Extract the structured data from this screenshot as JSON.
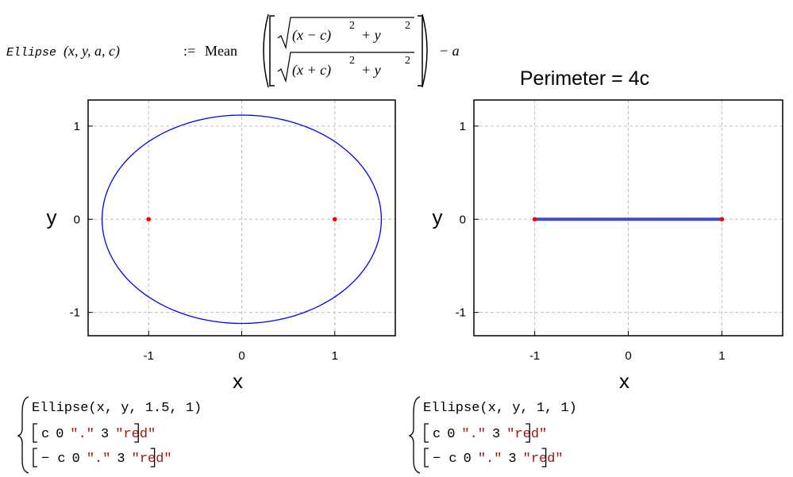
{
  "formula": {
    "name": "Ellipse",
    "args": "(x, y, a, c)",
    "assign": ":=",
    "func": "Mean",
    "top_inner": "(x − c)",
    "top_exp": "2",
    "top_tail": "+ y",
    "top_tail_exp": "2",
    "bottom_inner": "(x + c)",
    "bottom_exp": "2",
    "bottom_tail": "+ y",
    "bottom_tail_exp": "2",
    "tail": "− a"
  },
  "chart_data": [
    {
      "type": "implicit",
      "xlabel": "x",
      "ylabel": "y",
      "xlim": [
        -1.65,
        1.65
      ],
      "ylim": [
        -1.25,
        1.28
      ],
      "xticks": [
        -1,
        0,
        1
      ],
      "yticks": [
        -1,
        0,
        1
      ],
      "grid": true,
      "curve": {
        "a": 1.5,
        "c": 1,
        "color": "#0000ff",
        "width": 1.3
      },
      "points": {
        "x": [
          -1,
          1
        ],
        "y": [
          0,
          0
        ],
        "color": "#ff0000"
      }
    },
    {
      "type": "implicit",
      "title": "Perimeter = 4c",
      "xlabel": "x",
      "ylabel": "y",
      "xlim": [
        -1.65,
        1.65
      ],
      "ylim": [
        -1.25,
        1.28
      ],
      "xticks": [
        -1,
        0,
        1
      ],
      "yticks": [
        -1,
        0,
        1
      ],
      "grid": true,
      "curve": {
        "a": 1,
        "c": 1,
        "color": "#3f48cc",
        "width": 4
      },
      "points": {
        "x": [
          -1,
          1
        ],
        "y": [
          0,
          0
        ],
        "color": "#ff0000"
      }
    }
  ],
  "code_blocks": [
    {
      "call": "Ellipse(x, y, 1.5, 1)",
      "rows": [
        [
          "c",
          "0",
          "\".\"",
          "3",
          "\"red\""
        ],
        [
          "− c",
          "0",
          "\".\"",
          "3",
          "\"red\""
        ]
      ]
    },
    {
      "call": "Ellipse(x, y, 1, 1)",
      "rows": [
        [
          "c",
          "0",
          "\".\"",
          "3",
          "\"red\""
        ],
        [
          "− c",
          "0",
          "\".\"",
          "3",
          "\"red\""
        ]
      ]
    }
  ]
}
